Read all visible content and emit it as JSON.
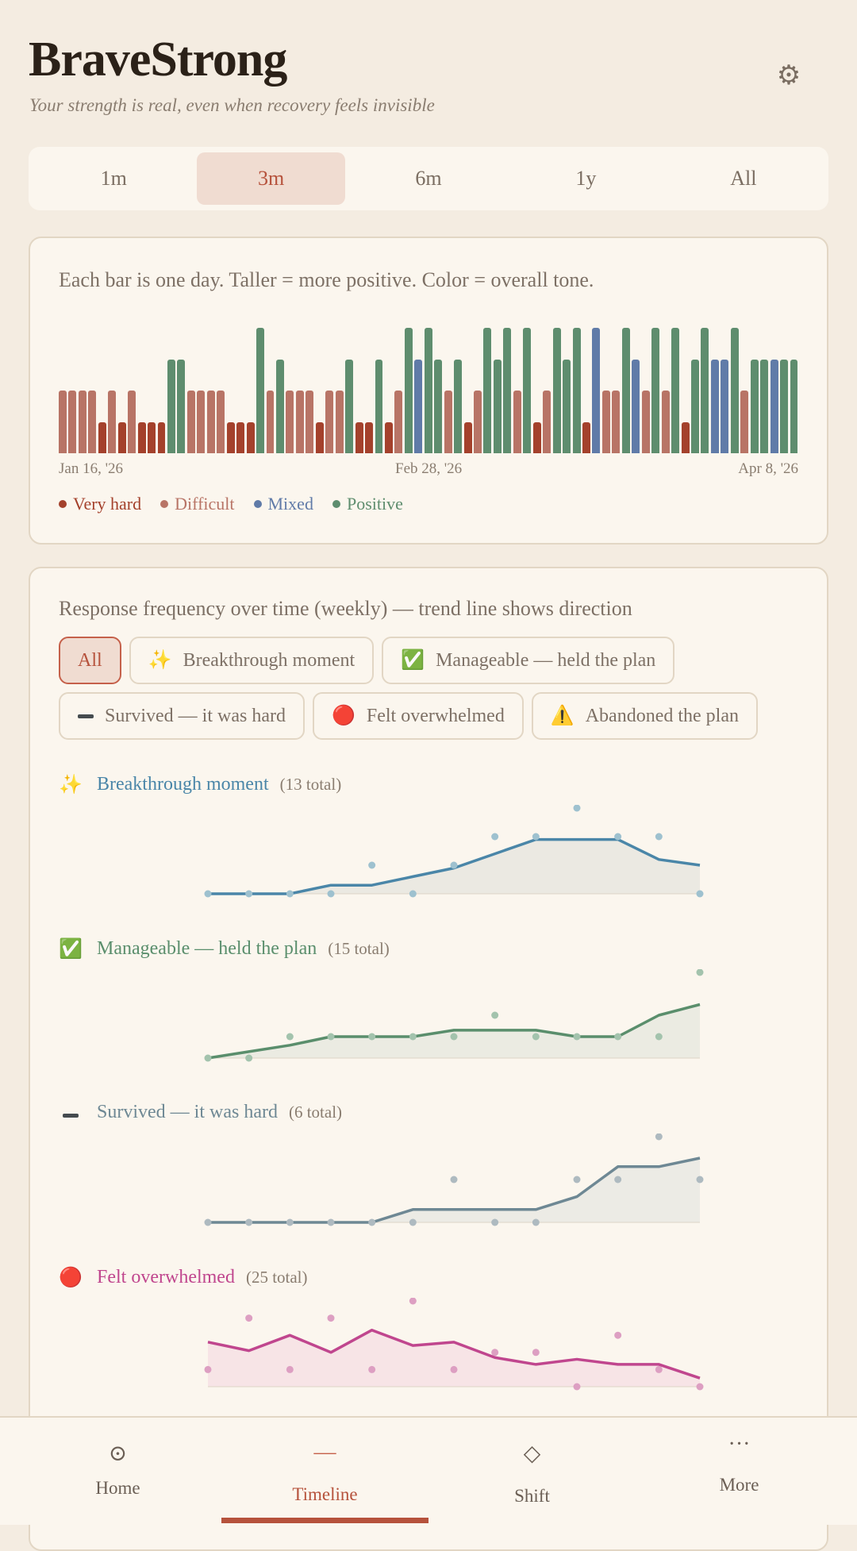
{
  "app": {
    "title": "BraveStrong",
    "subtitle": "Your strength is real, even when recovery feels invisible"
  },
  "settings_icon": "gear-icon",
  "range_tabs": [
    {
      "label": "1m",
      "active": false
    },
    {
      "label": "3m",
      "active": true
    },
    {
      "label": "6m",
      "active": false
    },
    {
      "label": "1y",
      "active": false
    },
    {
      "label": "All",
      "active": false
    }
  ],
  "daily_card": {
    "caption": "Each bar is one day. Taller = more positive. Color = overall tone.",
    "x_start": "Jan 16, '26",
    "x_mid": "Feb 28, '26",
    "x_end": "Apr 8, '26",
    "legend": [
      {
        "key": "very_hard",
        "label": "Very hard",
        "color": "#a4412c"
      },
      {
        "key": "difficult",
        "label": "Difficult",
        "color": "#b87466"
      },
      {
        "key": "mixed",
        "label": "Mixed",
        "color": "#607ba8"
      },
      {
        "key": "positive",
        "label": "Positive",
        "color": "#5e8d6e"
      }
    ]
  },
  "chart_data": [
    {
      "type": "bar",
      "x_labels": [
        "Jan 16, '26",
        "Feb 28, '26",
        "Apr 8, '26"
      ],
      "tone_scale": {
        "very_hard": 1,
        "difficult": 2,
        "mixed": 3,
        "positive": 4
      },
      "values": [
        2,
        2,
        2,
        2,
        1,
        2,
        1,
        2,
        1,
        1,
        1,
        3,
        3,
        2,
        2,
        2,
        2,
        1,
        1,
        1,
        4,
        2,
        3,
        2,
        2,
        2,
        1,
        2,
        2,
        3,
        1,
        1,
        3,
        1,
        2,
        4,
        3,
        4,
        3,
        2,
        3,
        1,
        2,
        4,
        3,
        4,
        2,
        4,
        1,
        2,
        4,
        3,
        4,
        1,
        4,
        2,
        2,
        4,
        3,
        2,
        4,
        2,
        4,
        1,
        3,
        4,
        3,
        3,
        4,
        2,
        3,
        3,
        3,
        3,
        3
      ],
      "tones": [
        "difficult",
        "difficult",
        "difficult",
        "difficult",
        "very_hard",
        "difficult",
        "very_hard",
        "difficult",
        "very_hard",
        "very_hard",
        "very_hard",
        "positive",
        "positive",
        "difficult",
        "difficult",
        "difficult",
        "difficult",
        "very_hard",
        "very_hard",
        "very_hard",
        "positive",
        "difficult",
        "positive",
        "difficult",
        "difficult",
        "difficult",
        "very_hard",
        "difficult",
        "difficult",
        "positive",
        "very_hard",
        "very_hard",
        "positive",
        "very_hard",
        "difficult",
        "positive",
        "mixed",
        "positive",
        "positive",
        "difficult",
        "positive",
        "very_hard",
        "difficult",
        "positive",
        "positive",
        "positive",
        "difficult",
        "positive",
        "very_hard",
        "difficult",
        "positive",
        "positive",
        "positive",
        "very_hard",
        "mixed",
        "difficult",
        "difficult",
        "positive",
        "mixed",
        "difficult",
        "positive",
        "difficult",
        "positive",
        "very_hard",
        "positive",
        "positive",
        "mixed",
        "mixed",
        "positive",
        "difficult",
        "positive",
        "positive",
        "mixed",
        "positive",
        "positive"
      ]
    },
    {
      "type": "line",
      "name": "Breakthrough moment",
      "x": [
        1,
        2,
        3,
        4,
        5,
        6,
        7,
        8,
        9,
        10,
        11,
        12,
        13
      ],
      "points": [
        0,
        0,
        0,
        0,
        1,
        0,
        1,
        2,
        2,
        3,
        2,
        2,
        0
      ],
      "trend": [
        0,
        0,
        0,
        0.3,
        0.3,
        0.6,
        0.9,
        1.4,
        1.9,
        1.9,
        1.9,
        1.2,
        1.0
      ],
      "ylim": [
        0,
        3
      ]
    },
    {
      "type": "line",
      "name": "Manageable — held the plan",
      "x": [
        1,
        2,
        3,
        4,
        5,
        6,
        7,
        8,
        9,
        10,
        11,
        12,
        13
      ],
      "points": [
        0,
        0,
        1,
        1,
        1,
        1,
        1,
        2,
        1,
        1,
        1,
        1,
        4
      ],
      "trend": [
        0,
        0.3,
        0.6,
        1.0,
        1.0,
        1.0,
        1.3,
        1.3,
        1.3,
        1.0,
        1.0,
        2.0,
        2.5
      ],
      "ylim": [
        0,
        4
      ]
    },
    {
      "type": "line",
      "name": "Survived — it was hard",
      "x": [
        1,
        2,
        3,
        4,
        5,
        6,
        7,
        8,
        9,
        10,
        11,
        12,
        13
      ],
      "points": [
        0,
        0,
        0,
        0,
        0,
        0,
        1,
        0,
        0,
        1,
        1,
        2,
        1
      ],
      "trend": [
        0,
        0,
        0,
        0,
        0,
        0.3,
        0.3,
        0.3,
        0.3,
        0.6,
        1.3,
        1.3,
        1.5
      ],
      "ylim": [
        0,
        2
      ]
    },
    {
      "type": "line",
      "name": "Felt overwhelmed",
      "x": [
        1,
        2,
        3,
        4,
        5,
        6,
        7,
        8,
        9,
        10,
        11,
        12,
        13
      ],
      "points": [
        1,
        4,
        1,
        4,
        1,
        5,
        1,
        2,
        2,
        0,
        3,
        1,
        0
      ],
      "trend": [
        2.6,
        2.1,
        3.0,
        2.0,
        3.3,
        2.4,
        2.6,
        1.7,
        1.3,
        1.6,
        1.3,
        1.3,
        0.5
      ],
      "ylim": [
        0,
        5
      ]
    }
  ],
  "freq_card": {
    "caption": "Response frequency over time (weekly) — trend line shows direction",
    "filter_chips": [
      {
        "label": "All",
        "icon": "",
        "active": true
      },
      {
        "label": "Breakthrough moment",
        "icon": "sparkles-icon",
        "glyph": "✨",
        "active": false
      },
      {
        "label": "Manageable — held the plan",
        "icon": "check-box-icon",
        "glyph": "✅",
        "active": false
      },
      {
        "label": "Survived — it was hard",
        "icon": "minus-icon",
        "glyph": "",
        "active": false
      },
      {
        "label": "Felt overwhelmed",
        "icon": "red-circle-icon",
        "glyph": "🔴",
        "active": false
      },
      {
        "label": "Abandoned the plan",
        "icon": "warning-icon",
        "glyph": "⚠️",
        "active": false
      }
    ],
    "sections": [
      {
        "key": "breakthrough",
        "label": "Breakthrough moment",
        "total": "(13 total)",
        "icon": "sparkles-icon",
        "glyph": "✨",
        "color": "#4a86a8",
        "dot_color": "#9ec1cf"
      },
      {
        "key": "manageable",
        "label": "Manageable — held the plan",
        "total": "(15 total)",
        "icon": "check-box-icon",
        "glyph": "✅",
        "color": "#5a8e6c",
        "dot_color": "#a3c3ad"
      },
      {
        "key": "survived",
        "label": "Survived — it was hard",
        "total": "(6 total)",
        "icon": "minus-icon",
        "glyph": "",
        "color": "#6e8894",
        "dot_color": "#aebac0"
      },
      {
        "key": "overwhelmed",
        "label": "Felt overwhelmed",
        "total": "(25 total)",
        "icon": "red-circle-icon",
        "glyph": "🔴",
        "color": "#c0468e",
        "dot_color": "#dd9fc2"
      }
    ]
  },
  "nav": [
    {
      "label": "Home",
      "icon": "home-icon",
      "glyph": "⊙",
      "active": false
    },
    {
      "label": "Timeline",
      "icon": "timeline-icon",
      "glyph": "—",
      "active": true
    },
    {
      "label": "Shift",
      "icon": "diamond-icon",
      "glyph": "◇",
      "active": false
    },
    {
      "label": "More",
      "icon": "more-icon",
      "glyph": "···",
      "active": false
    }
  ]
}
